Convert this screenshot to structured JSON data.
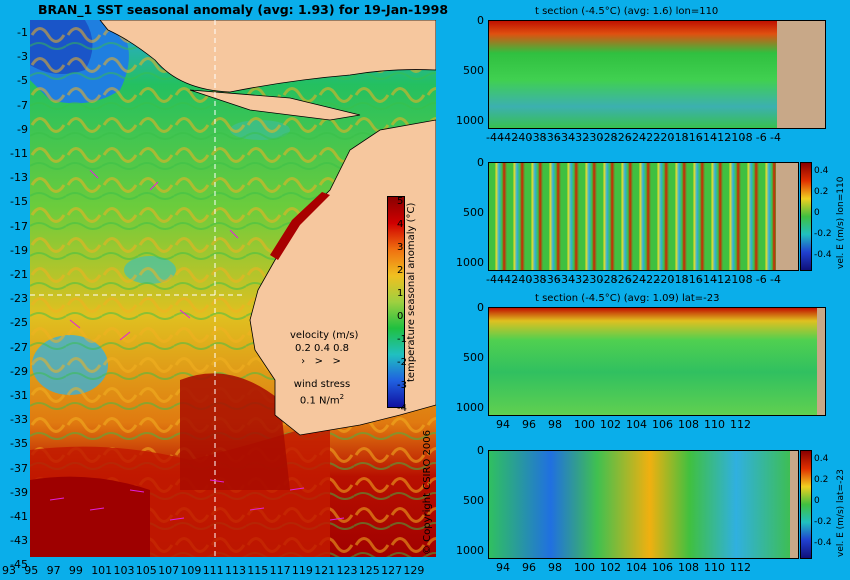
{
  "main_title": "BRAN_1 SST seasonal anomaly (avg: 1.93) for 19-Jan-1998",
  "map": {
    "lat_ticks": [
      "-1",
      "-3",
      "-5",
      "-7",
      "-9",
      "-11",
      "-13",
      "-15",
      "-17",
      "-19",
      "-21",
      "-23",
      "-25",
      "-27",
      "-29",
      "-31",
      "-33",
      "-35",
      "-37",
      "-39",
      "-41",
      "-43",
      "-45"
    ],
    "lon_ticks": [
      "93",
      "95",
      "97",
      "99",
      "101",
      "103",
      "105",
      "107",
      "109",
      "111",
      "113",
      "115",
      "117",
      "119",
      "121",
      "123",
      "125",
      "127",
      "129"
    ],
    "colorbar_ticks": [
      "5",
      "4",
      "3",
      "2",
      "1",
      "0",
      "-1",
      "-2",
      "-3",
      "-4"
    ],
    "colorbar_label": "temperature seasonal anomaly (°C)",
    "velocity_label": "velocity (m/s)",
    "velocity_scale": "0.2 0.4 0.8",
    "wind_label": "wind stress",
    "wind_scale": "0.1 N/m",
    "wind_scale_exp": "2",
    "copyright": "© Copyright CSIRO 2006",
    "colors": {
      "ocean": "#0aaeea",
      "land": "#f6c79e",
      "hot": "#a80000",
      "vector": "#e020e0"
    }
  },
  "panels": [
    {
      "title": "t section (-4.5°C) (avg: 1.6) lon=110",
      "x_ticks": [
        "-44",
        "-42",
        "-40",
        "-38",
        "-36",
        "-34",
        "-32",
        "-30",
        "-28",
        "-26",
        "-24",
        "-22",
        "-20",
        "-18",
        "-16",
        "-14",
        "-12",
        "-10",
        "-8",
        "-6",
        "-4"
      ],
      "y_ticks": [
        "0",
        "500",
        "1000"
      ],
      "colorbar": null
    },
    {
      "title": "",
      "x_ticks": [
        "-44",
        "-42",
        "-40",
        "-38",
        "-36",
        "-34",
        "-32",
        "-30",
        "-28",
        "-26",
        "-24",
        "-22",
        "-20",
        "-18",
        "-16",
        "-14",
        "-12",
        "-10",
        "-8",
        "-6",
        "-4"
      ],
      "y_ticks": [
        "0",
        "500",
        "1000"
      ],
      "colorbar": {
        "ticks": [
          "0.4",
          "0.2",
          "0",
          "-0.2",
          "-0.4"
        ],
        "label": "vel. E (m/s) lon=110"
      }
    },
    {
      "title": "t section (-4.5°C) (avg: 1.09) lat=-23",
      "x_ticks": [
        "94",
        "96",
        "98",
        "100",
        "102",
        "104",
        "106",
        "108",
        "110",
        "112"
      ],
      "y_ticks": [
        "0",
        "500",
        "1000"
      ],
      "colorbar": null
    },
    {
      "title": "",
      "x_ticks": [
        "94",
        "96",
        "98",
        "100",
        "102",
        "104",
        "106",
        "108",
        "110",
        "112"
      ],
      "y_ticks": [
        "0",
        "500",
        "1000"
      ],
      "colorbar": {
        "ticks": [
          "0.4",
          "0.2",
          "0",
          "-0.2",
          "-0.4"
        ],
        "label": "vel. E (m/s) lat=-23"
      }
    }
  ]
}
